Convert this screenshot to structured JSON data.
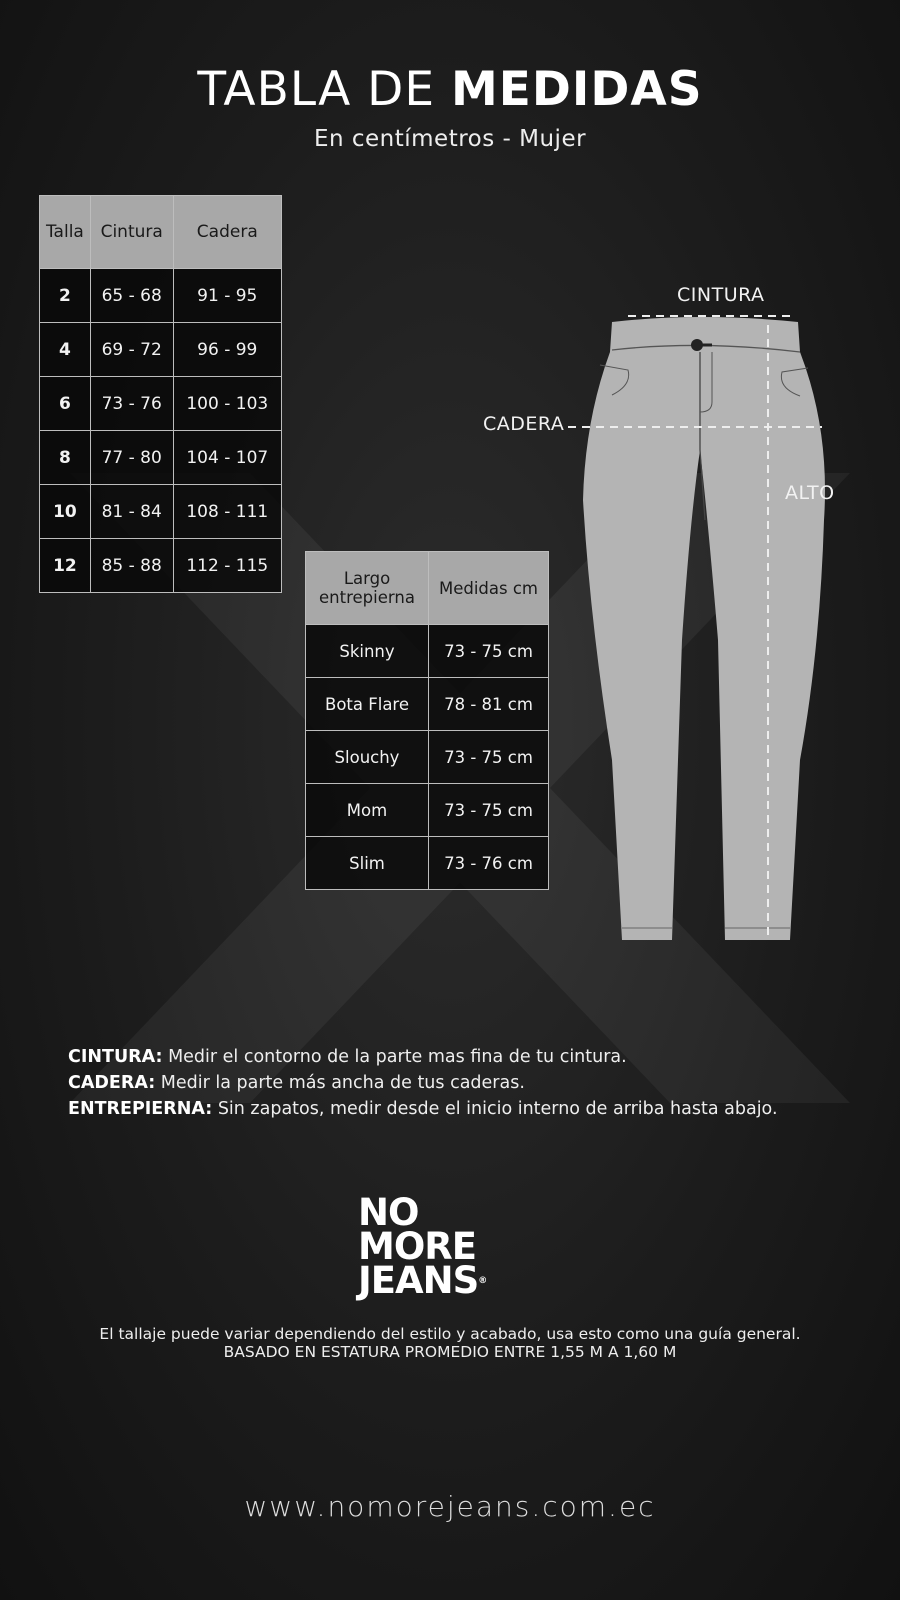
{
  "header": {
    "title_light": "TABLA DE",
    "title_bold": "MEDIDAS",
    "subtitle": "En centímetros - Mujer"
  },
  "size_table": {
    "headers": [
      "Talla",
      "Cintura",
      "Cadera"
    ],
    "rows": [
      [
        "2",
        "65 - 68",
        "91 - 95"
      ],
      [
        "4",
        "69 - 72",
        "96 - 99"
      ],
      [
        "6",
        "73 - 76",
        "100 - 103"
      ],
      [
        "8",
        "77 - 80",
        "104 - 107"
      ],
      [
        "10",
        "81 - 84",
        "108 - 111"
      ],
      [
        "12",
        "85 - 88",
        "112 - 115"
      ]
    ]
  },
  "inseam_table": {
    "headers": [
      "Largo entrepierna",
      "Medidas cm"
    ],
    "rows": [
      [
        "Skinny",
        "73 - 75 cm"
      ],
      [
        "Bota Flare",
        "78 - 81 cm"
      ],
      [
        "Slouchy",
        "73 - 75 cm"
      ],
      [
        "Mom",
        "73 - 75 cm"
      ],
      [
        "Slim",
        "73 - 76 cm"
      ]
    ]
  },
  "diagram": {
    "waist_label": "CINTURA",
    "hip_label": "CADERA",
    "height_label": "ALTO"
  },
  "notes": [
    {
      "term": "CINTURA:",
      "text": " Medir el contorno de la parte mas fina de tu cintura."
    },
    {
      "term": "CADERA:",
      "text": " Medir la parte más ancha de tus caderas."
    },
    {
      "term": "ENTREPIERNA:",
      "text": " Sin zapatos, medir desde el inicio interno de arriba hasta abajo."
    }
  ],
  "logo": {
    "line1": "NO",
    "line2": "MORE",
    "line3": "JEANS"
  },
  "disclaimer": {
    "line1": "El tallaje puede variar dependiendo del estilo y acabado, usa esto como una guía general.",
    "line2": "BASADO EN ESTATURA PROMEDIO ENTRE 1,55 M A 1,60 M"
  },
  "footer": {
    "url": "www.nomorejeans.com.ec"
  },
  "colors": {
    "background": "#1c1c1c",
    "table_header": "#a8a8a8",
    "pants": "#b4b4b4"
  }
}
